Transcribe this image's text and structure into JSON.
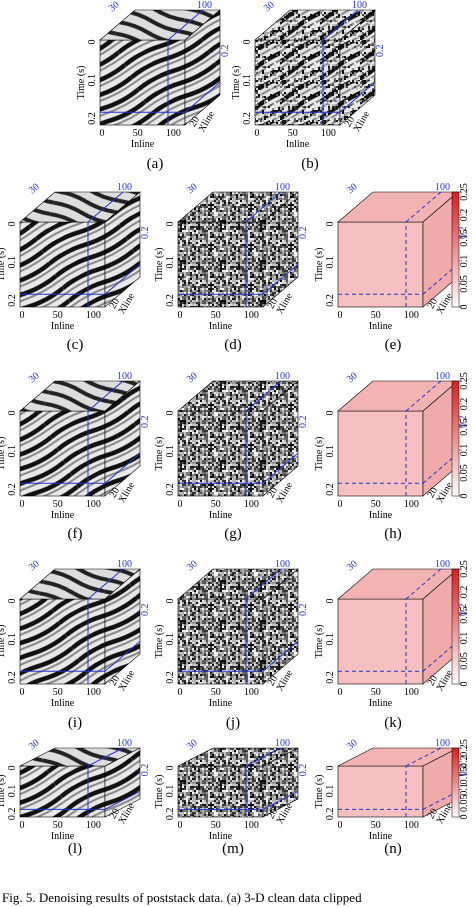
{
  "axes": {
    "time_label": "Time (s)",
    "inline_label": "Inline",
    "xline_label": "Xline",
    "time_ticks": [
      "0",
      "0.1",
      "0.2"
    ],
    "inline_ticks": [
      "0",
      "50",
      "100"
    ],
    "xline_ticks": [
      "20"
    ],
    "slice_labels": [
      "30",
      "100",
      "0.2"
    ]
  },
  "colorbar": {
    "ticks": [
      "0",
      "0.05",
      "0.1",
      "0.15",
      "0.2",
      "0.25"
    ]
  },
  "panels": [
    {
      "label": "(a)",
      "kind": "clean"
    },
    {
      "label": "(b)",
      "kind": "noisy"
    },
    {
      "label": "(c)",
      "kind": "clean"
    },
    {
      "label": "(d)",
      "kind": "noise"
    },
    {
      "label": "(e)",
      "kind": "error"
    },
    {
      "label": "(f)",
      "kind": "clean"
    },
    {
      "label": "(g)",
      "kind": "noise"
    },
    {
      "label": "(h)",
      "kind": "error"
    },
    {
      "label": "(i)",
      "kind": "clean"
    },
    {
      "label": "(j)",
      "kind": "noise"
    },
    {
      "label": "(k)",
      "kind": "error"
    },
    {
      "label": "(l)",
      "kind": "clean"
    },
    {
      "label": "(m)",
      "kind": "noise"
    },
    {
      "label": "(n)",
      "kind": "error"
    }
  ],
  "caption": "Fig. 5.   Denoising results of poststack data. (a) 3-D clean data clipped"
}
